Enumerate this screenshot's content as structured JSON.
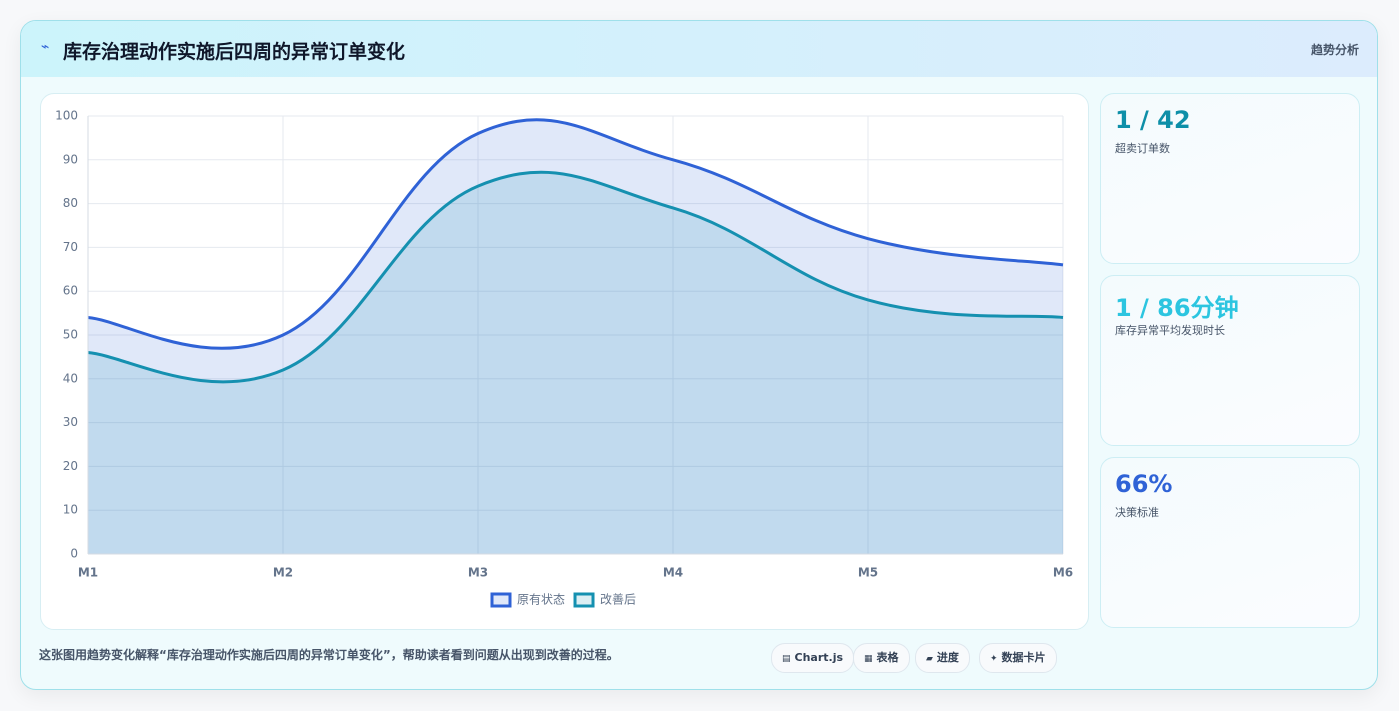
{
  "header": {
    "title": "库存治理动作实施后四周的异常订单变化",
    "tag": "趋势分析"
  },
  "chart_data": {
    "type": "area",
    "categories": [
      "M1",
      "M2",
      "M3",
      "M4",
      "M5",
      "M6"
    ],
    "series": [
      {
        "name": "原有状态",
        "color": "#2f62d6",
        "values": [
          54,
          50,
          96,
          90,
          72,
          66
        ]
      },
      {
        "name": "改善后",
        "color": "#1590b0",
        "values": [
          46,
          42,
          84,
          79,
          58,
          54
        ]
      }
    ],
    "ylim": [
      0,
      100
    ],
    "yticks": [
      0,
      10,
      20,
      30,
      40,
      50,
      60,
      70,
      80,
      90,
      100
    ],
    "grid": true,
    "legend": "bottom"
  },
  "cards": [
    {
      "value": "1 / 42",
      "label": "超卖订单数"
    },
    {
      "value": "1 / 86分钟",
      "label": "库存异常平均发现时长"
    },
    {
      "value": "66%",
      "label": "决策标准"
    }
  ],
  "footer": {
    "text": "这张图用趋势变化解释“库存治理动作实施后四周的异常订单变化”，帮助读者看到问题从出现到改善的过程。",
    "chips": [
      "Chart.js",
      "表格",
      "进度",
      "数据卡片"
    ]
  }
}
